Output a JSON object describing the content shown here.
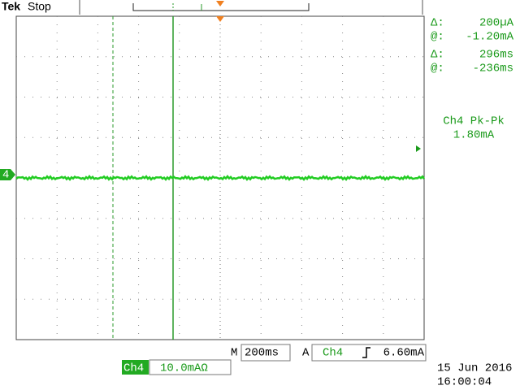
{
  "header": {
    "brand": "Tek",
    "status": "Stop"
  },
  "cursors": [
    {
      "delta_label": "Δ:",
      "delta": "200µA",
      "at_label": "@:",
      "at": "-1.20mA"
    },
    {
      "delta_label": "Δ:",
      "delta": "296ms",
      "at_label": "@:",
      "at": "-236ms"
    }
  ],
  "measurement": {
    "label": "Ch4 Pk-Pk",
    "value": "1.80mA"
  },
  "timebase": {
    "prefix": "M",
    "value": "200ms"
  },
  "trigger": {
    "prefix": "A",
    "source": "Ch4",
    "level": "6.60mA"
  },
  "channel": {
    "name": "Ch4",
    "scale": "10.0mAΩ",
    "marker": "4"
  },
  "datetime": {
    "date": "15 Jun 2016",
    "time": "16:00:04"
  }
}
